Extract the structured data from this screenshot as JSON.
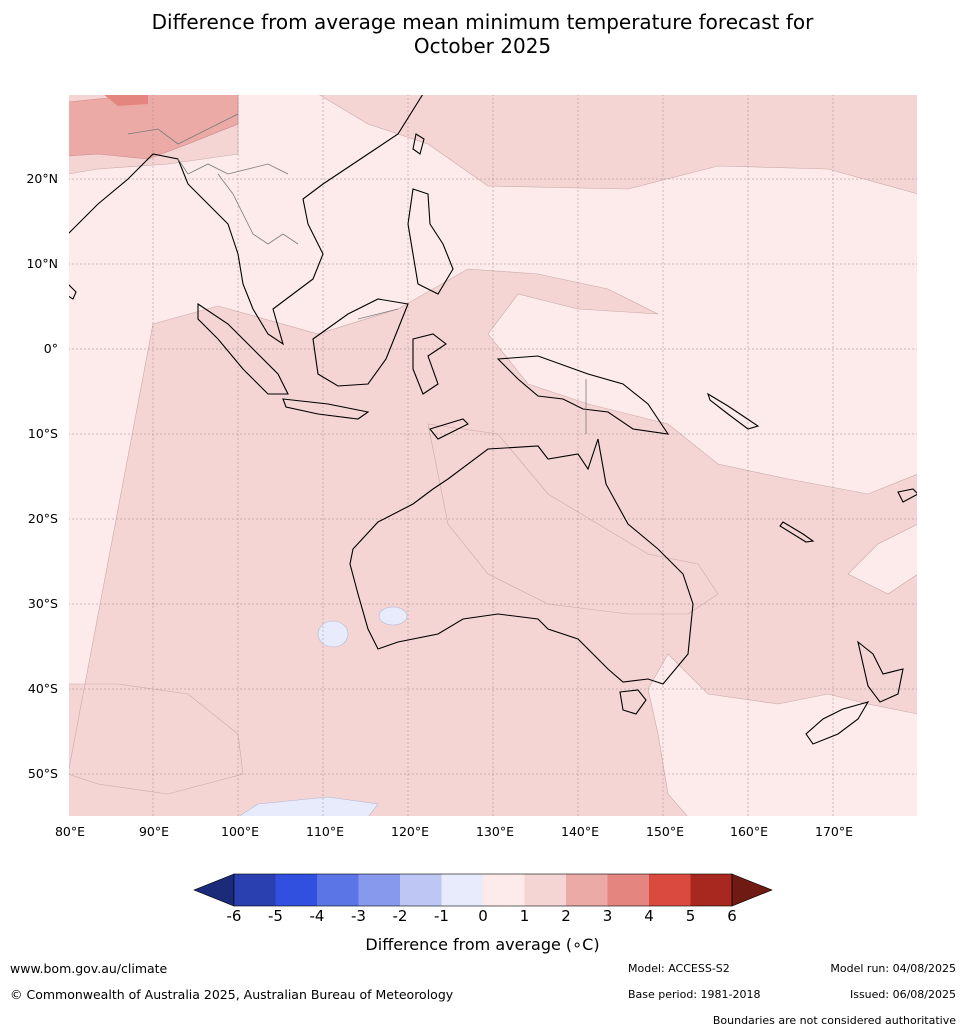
{
  "title_line1": "Difference from average mean minimum temperature forecast for",
  "title_line2": "October 2025",
  "map": {
    "lat_labels": [
      "20°N",
      "10°N",
      "0°",
      "10°S",
      "20°S",
      "30°S",
      "40°S",
      "50°S"
    ],
    "lon_labels": [
      "80°E",
      "90°E",
      "100°E",
      "110°E",
      "120°E",
      "130°E",
      "140°E",
      "150°E",
      "160°E",
      "170°E"
    ],
    "lon_range": [
      80,
      180
    ],
    "lat_range": [
      -55,
      30
    ]
  },
  "colorbar": {
    "title": "Difference from average (∘C)",
    "tick_labels": [
      "-6",
      "-5",
      "-4",
      "-3",
      "-2",
      "-1",
      "0",
      "1",
      "2",
      "3",
      "4",
      "5",
      "6"
    ],
    "colors": [
      "#1c2a7a",
      "#2a3fb0",
      "#3150e0",
      "#5b75e6",
      "#8699ec",
      "#bec7f4",
      "#e8ebfb",
      "#fcebea",
      "#f5d5d4",
      "#ecaaa6",
      "#e5857f",
      "#db4a3f",
      "#a8281f",
      "#701a14"
    ]
  },
  "footer": {
    "website": "www.bom.gov.au/climate",
    "copyright": "© Commonwealth of Australia 2025, Australian Bureau of Meteorology",
    "model": "Model: ACCESS-S2",
    "base_period": "Base period: 1981-2018",
    "model_run": "Model run: 04/08/2025",
    "issued": "Issued: 06/08/2025",
    "boundaries": "Boundaries are not considered authoritative"
  }
}
